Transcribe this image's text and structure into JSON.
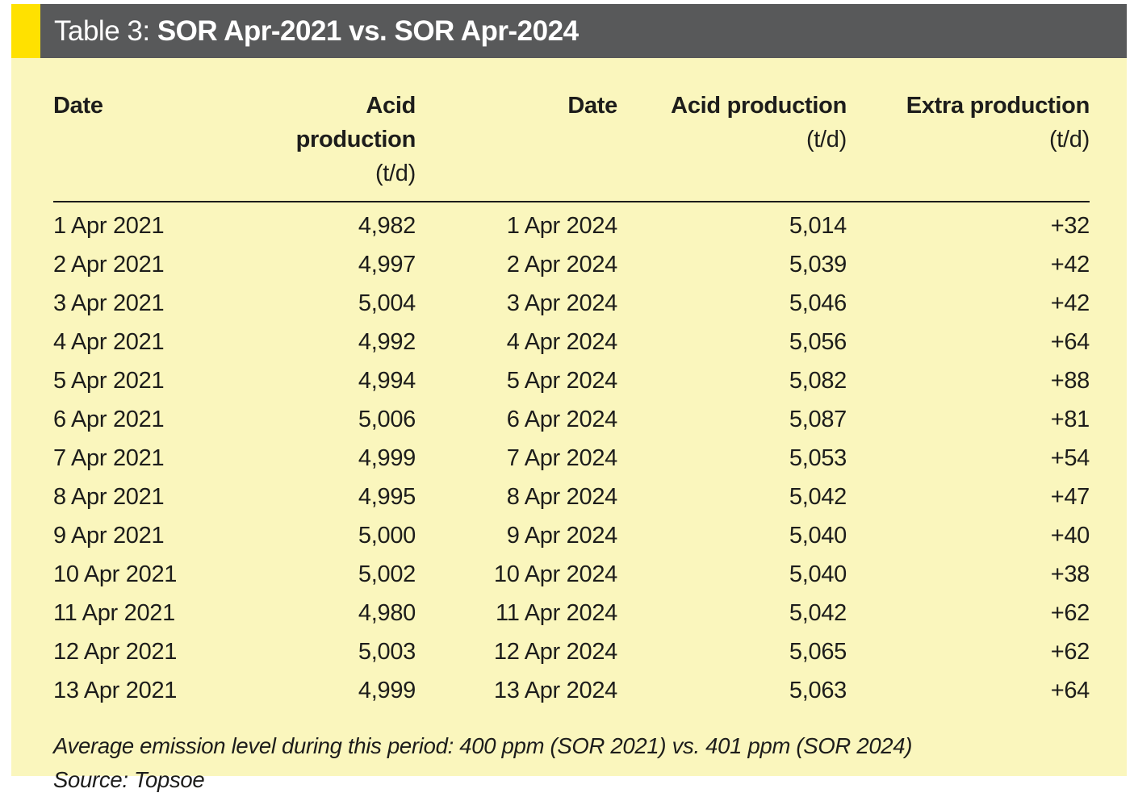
{
  "title_bar": {
    "label": "Table 3: ",
    "title": "SOR Apr-2021 vs. SOR Apr-2024",
    "bar_color": "#58595a",
    "accent_color": "#ffe100",
    "text_color": "#ffffff"
  },
  "table": {
    "columns": [
      {
        "label": "Date",
        "unit": "",
        "align": "left"
      },
      {
        "label": "Acid production",
        "unit": "(t/d)",
        "align": "right"
      },
      {
        "label": "Date",
        "unit": "",
        "align": "right"
      },
      {
        "label": "Acid production",
        "unit": "(t/d)",
        "align": "right"
      },
      {
        "label": "Extra production",
        "unit": "(t/d)",
        "align": "right"
      }
    ],
    "rows": [
      [
        "1 Apr 2021",
        "4,982",
        "1 Apr 2024",
        "5,014",
        "+32"
      ],
      [
        "2 Apr 2021",
        "4,997",
        "2 Apr 2024",
        "5,039",
        "+42"
      ],
      [
        "3 Apr 2021",
        "5,004",
        "3 Apr 2024",
        "5,046",
        "+42"
      ],
      [
        "4 Apr 2021",
        "4,992",
        "4 Apr 2024",
        "5,056",
        "+64"
      ],
      [
        "5 Apr 2021",
        "4,994",
        "5 Apr 2024",
        "5,082",
        "+88"
      ],
      [
        "6 Apr 2021",
        "5,006",
        "6 Apr 2024",
        "5,087",
        "+81"
      ],
      [
        "7 Apr 2021",
        "4,999",
        "7 Apr 2024",
        "5,053",
        "+54"
      ],
      [
        "8 Apr 2021",
        "4,995",
        "8 Apr 2024",
        "5,042",
        "+47"
      ],
      [
        "9 Apr 2021",
        "5,000",
        "9 Apr 2024",
        "5,040",
        "+40"
      ],
      [
        "10 Apr 2021",
        "5,002",
        "10 Apr 2024",
        "5,040",
        "+38"
      ],
      [
        "11 Apr 2021",
        "4,980",
        "11 Apr 2024",
        "5,042",
        "+62"
      ],
      [
        "12 Apr 2021",
        "5,003",
        "12 Apr 2024",
        "5,065",
        "+62"
      ],
      [
        "13 Apr 2021",
        "4,999",
        "13 Apr 2024",
        "5,063",
        "+64"
      ]
    ]
  },
  "footnotes": {
    "emission_note": "Average emission level during this period: 400 ppm (SOR 2021) vs. 401 ppm (SOR 2024)",
    "source": "Source: Topsoe"
  },
  "colors": {
    "panel_background": "#faf6bd",
    "text": "#1d1d1b"
  }
}
